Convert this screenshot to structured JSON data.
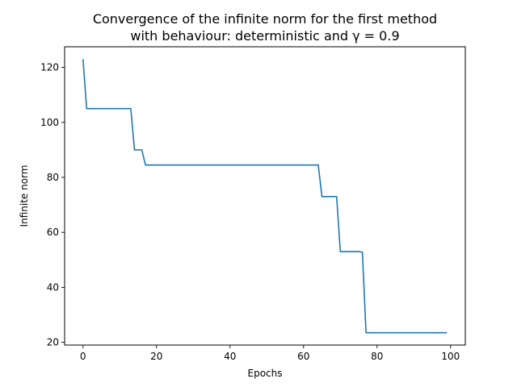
{
  "chart_data": {
    "type": "line",
    "title_line1": "Convergence of the infinite norm for the first method",
    "title_line2": "with behaviour: deterministic and γ = 0.9",
    "xlabel": "Epochs",
    "ylabel": "Infinite norm",
    "xlim": [
      -5,
      104
    ],
    "ylim": [
      19,
      127.5
    ],
    "xticks": [
      0,
      20,
      40,
      60,
      80,
      100
    ],
    "yticks": [
      20,
      40,
      60,
      80,
      100,
      120
    ],
    "grid": false,
    "line_color": "#1f77b4",
    "series": [
      {
        "x": [
          0,
          1,
          2,
          3,
          4,
          5,
          6,
          7,
          8,
          9,
          10,
          11,
          12,
          13,
          14,
          15,
          16,
          17,
          18,
          19,
          20,
          21,
          22,
          23,
          24,
          25,
          26,
          27,
          28,
          29,
          30,
          31,
          32,
          33,
          34,
          35,
          36,
          37,
          38,
          39,
          40,
          41,
          42,
          43,
          44,
          45,
          46,
          47,
          48,
          49,
          50,
          51,
          52,
          53,
          54,
          55,
          56,
          57,
          58,
          59,
          60,
          61,
          62,
          63,
          64,
          65,
          66,
          67,
          68,
          69,
          70,
          71,
          72,
          73,
          74,
          75,
          76,
          77,
          78,
          79,
          80,
          81,
          82,
          83,
          84,
          85,
          86,
          87,
          88,
          89,
          90,
          91,
          92,
          93,
          94,
          95,
          96,
          97,
          98,
          99
        ],
        "y": [
          123,
          105,
          105,
          105,
          105,
          105,
          105,
          105,
          105,
          105,
          105,
          105,
          105,
          105,
          90,
          90,
          90,
          84.5,
          84.5,
          84.5,
          84.5,
          84.5,
          84.5,
          84.5,
          84.5,
          84.5,
          84.5,
          84.5,
          84.5,
          84.5,
          84.5,
          84.5,
          84.5,
          84.5,
          84.5,
          84.5,
          84.5,
          84.5,
          84.5,
          84.5,
          84.5,
          84.5,
          84.5,
          84.5,
          84.5,
          84.5,
          84.5,
          84.5,
          84.5,
          84.5,
          84.5,
          84.5,
          84.5,
          84.5,
          84.5,
          84.5,
          84.5,
          84.5,
          84.5,
          84.5,
          84.5,
          84.5,
          84.5,
          84.5,
          84.5,
          73,
          73,
          73,
          73,
          73,
          53,
          53,
          53,
          53,
          53,
          53,
          52.8,
          23.5,
          23.5,
          23.5,
          23.5,
          23.5,
          23.5,
          23.5,
          23.5,
          23.5,
          23.5,
          23.5,
          23.5,
          23.5,
          23.5,
          23.5,
          23.5,
          23.5,
          23.5,
          23.5,
          23.5,
          23.5,
          23.5,
          23.5
        ]
      }
    ]
  }
}
